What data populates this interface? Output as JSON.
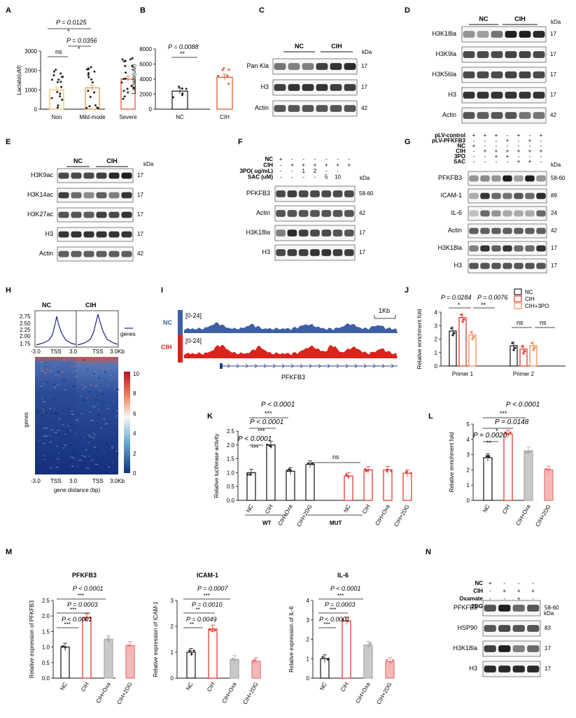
{
  "panel_letters": [
    "A",
    "B",
    "C",
    "D",
    "E",
    "F",
    "G",
    "H",
    "I",
    "J",
    "K",
    "L",
    "M",
    "N"
  ],
  "kda": "kDa",
  "blot_C": {
    "groups": [
      "NC",
      "CIH"
    ],
    "rows": [
      {
        "label": "Pan Kla",
        "size": "17"
      },
      {
        "label": "H3",
        "size": "17"
      },
      {
        "label": "Actin",
        "size": "42"
      }
    ]
  },
  "blot_D": {
    "groups": [
      "NC",
      "CIH"
    ],
    "rows": [
      {
        "label": "H3K18la",
        "size": "17"
      },
      {
        "label": "H3K9la",
        "size": "17"
      },
      {
        "label": "H3K56la",
        "size": "17"
      },
      {
        "label": "H3",
        "size": "17"
      },
      {
        "label": "Actin",
        "size": "42"
      }
    ]
  },
  "blot_E": {
    "groups": [
      "NC",
      "CIH"
    ],
    "rows": [
      {
        "label": "H3K9ac",
        "size": "17"
      },
      {
        "label": "H3K14ac",
        "size": "17"
      },
      {
        "label": "H3K27ac",
        "size": "17"
      },
      {
        "label": "H3",
        "size": "17"
      },
      {
        "label": "Actin",
        "size": "42"
      }
    ]
  },
  "blot_F": {
    "conditions": [
      {
        "label": "NC",
        "marks": [
          "+",
          "-",
          "-",
          "-",
          "-",
          "-",
          "-"
        ]
      },
      {
        "label": "CIH",
        "marks": [
          "-",
          "+",
          "+",
          "+",
          "+",
          "+",
          "+"
        ]
      },
      {
        "label": "3PO( ug/mL)",
        "marks": [
          "-",
          "-",
          "1",
          "2",
          "-",
          "-",
          ""
        ]
      },
      {
        "label": "SAC (uM)",
        "marks": [
          "-",
          "-",
          "-",
          "-",
          "5",
          "10",
          ""
        ]
      }
    ],
    "rows": [
      {
        "label": "PFKFB3",
        "size": "58-60"
      },
      {
        "label": "Actin",
        "size": "42"
      },
      {
        "label": "H3K18la",
        "size": "17"
      },
      {
        "label": "H3",
        "size": "17"
      }
    ]
  },
  "blot_G": {
    "conditions": [
      {
        "label": "pLV-control",
        "marks": [
          "+",
          "+",
          "+",
          "-",
          "+",
          "-",
          "+"
        ]
      },
      {
        "label": "pLV-PFKFB3",
        "marks": [
          "-",
          "-",
          "-",
          "+",
          "-",
          "+",
          "-"
        ]
      },
      {
        "label": "NC",
        "marks": [
          "+",
          "-",
          "-",
          "-",
          "-",
          "-",
          "-"
        ]
      },
      {
        "label": "CIH",
        "marks": [
          "-",
          "+",
          "+",
          "+",
          "+",
          "+",
          "+"
        ]
      },
      {
        "label": "3PO",
        "marks": [
          "-",
          "-",
          "+",
          "+",
          "-",
          "-",
          "-"
        ]
      },
      {
        "label": "SAC",
        "marks": [
          "-",
          "-",
          "-",
          "-",
          "+",
          "+",
          "-"
        ]
      }
    ],
    "rows": [
      {
        "label": "PFKFB3",
        "size": "58-60"
      },
      {
        "label": "ICAM-1",
        "size": "89"
      },
      {
        "label": "IL-6",
        "size": "24"
      },
      {
        "label": "Actin",
        "size": "42"
      },
      {
        "label": "H3K18la",
        "size": "17"
      },
      {
        "label": "H3",
        "size": "17"
      }
    ]
  },
  "blot_N": {
    "conditions": [
      {
        "label": "NC",
        "marks": [
          "+",
          "-",
          "-",
          "-"
        ]
      },
      {
        "label": "CIH",
        "marks": [
          "-",
          "+",
          "+",
          "+"
        ]
      },
      {
        "label": "Oxamate",
        "marks": [
          "-",
          "-",
          "+",
          "-"
        ]
      },
      {
        "label": "2DG",
        "marks": [
          "-",
          "-",
          "-",
          "+"
        ]
      }
    ],
    "rows": [
      {
        "label": "PFKFB3",
        "size": "58-60"
      },
      {
        "label": "HSP90",
        "size": "83"
      },
      {
        "label": "H3K18la",
        "size": "17"
      },
      {
        "label": "H3",
        "size": "17"
      }
    ]
  },
  "heatmap_H": {
    "titles": [
      "NC",
      "CIH"
    ],
    "profile_yticks": [
      "2.75",
      "2.50",
      "2.25",
      "2.00",
      "1.75"
    ],
    "legend": "genes",
    "xticks": [
      "-3.0",
      "TSS",
      "3.0",
      "3.0Kb"
    ],
    "colorbar_ticks": [
      "10",
      "8",
      "6",
      "4",
      "2",
      "0"
    ],
    "ylabel": "genes",
    "xlabel": "gene distance (bp)"
  },
  "track_I": {
    "tracks": [
      {
        "name": "NC",
        "range": "[0-24]"
      },
      {
        "name": "CIH",
        "range": "[0-24]"
      }
    ],
    "scale": "1Kb",
    "gene": "PFKFB3",
    "colors": {
      "NC": "#3d5fa6",
      "CIH": "#d9231c"
    }
  },
  "stats": {
    "A": [
      "P = 0.0125",
      "*",
      "P = 0.0356",
      "ns",
      "*"
    ],
    "B": [
      "P = 0.0088",
      "**"
    ],
    "J": [
      "P = 0.0284",
      "P = 0.0076",
      "*",
      "**",
      "ns",
      "ns"
    ],
    "K": [
      "P < 0.0001",
      "***",
      "P < 0.0001",
      "***",
      "P < 0.0001",
      "***",
      "ns"
    ],
    "L": [
      "P < 0.0001",
      "***",
      "P = 0.0148",
      "*",
      "P = 0.0020",
      "**"
    ],
    "M1": [
      "P < 0.0001",
      "***",
      "P = 0.0003",
      "***",
      "P < 0.0001",
      "***"
    ],
    "M2": [
      "P = 0.0007",
      "***",
      "P = 0.0010",
      "**",
      "P = 0.0049",
      "**"
    ],
    "M3": [
      "P < 0.0001",
      "***",
      "P = 0.0003",
      "***",
      "P < 0.0001",
      "***"
    ]
  },
  "group_labels": {
    "K": [
      "WT",
      "MUT"
    ]
  },
  "chart_data": [
    {
      "panel": "A",
      "type": "bar",
      "categories": [
        "Non",
        "Mild-mode",
        "Severe"
      ],
      "values": [
        1000,
        1100,
        1550
      ],
      "ylabel": "Lactate(uM)",
      "ylim": [
        0,
        3000
      ],
      "yticks": [
        "0",
        "1000",
        "2000",
        "3000"
      ],
      "colors": [
        "#f3c46b",
        "#e8924a",
        "#e55a3a"
      ]
    },
    {
      "panel": "B",
      "type": "bar",
      "categories": [
        "NC",
        "CIH"
      ],
      "values": [
        2400,
        4250
      ],
      "ylabel": "Lactate(uM)",
      "ylim": [
        0,
        8000
      ],
      "yticks": [
        "0",
        "2000",
        "4000",
        "6000",
        "8000"
      ],
      "colors": [
        "#222222",
        "#e2572f"
      ]
    },
    {
      "panel": "J",
      "type": "bar",
      "categories": [
        "Primer 1",
        "Primer 2"
      ],
      "series": [
        {
          "name": "NC",
          "values": [
            2.6,
            1.5
          ]
        },
        {
          "name": "CIH",
          "values": [
            3.6,
            1.25
          ]
        },
        {
          "name": "CIH+3PO",
          "values": [
            2.3,
            1.5
          ]
        }
      ],
      "ylabel": "Relative enrichment fold",
      "ylim": [
        0,
        4
      ],
      "yticks": [
        "0",
        "1",
        "2",
        "3",
        "4"
      ],
      "colors": [
        "#222222",
        "#e23c2f",
        "#f28b54"
      ]
    },
    {
      "panel": "K",
      "type": "bar",
      "categories": [
        "NC",
        "CIH",
        "CIH+Oxa",
        "CIH+2DG",
        "NC",
        "CIH",
        "CIH+Oxa",
        "CIH+2DG"
      ],
      "values": [
        1.0,
        2.0,
        1.05,
        1.3,
        0.88,
        1.1,
        1.1,
        0.98
      ],
      "ylabel": "Relative luciferase activity",
      "ylim": [
        0,
        2.5
      ],
      "yticks": [
        "0.0",
        "0.5",
        "1.0",
        "1.5",
        "2.0",
        "2.5"
      ],
      "colors": [
        "#222222",
        "#222222",
        "#222222",
        "#222222",
        "#e23c2f",
        "#e23c2f",
        "#e23c2f",
        "#e23c2f"
      ]
    },
    {
      "panel": "L",
      "type": "bar",
      "categories": [
        "NC",
        "CIH",
        "CIH+Oxa",
        "CIH+2DG"
      ],
      "values": [
        2.8,
        4.35,
        3.25,
        2.0
      ],
      "ylabel": "Relative enrichment fold",
      "ylim": [
        0,
        5
      ],
      "yticks": [
        "0",
        "1",
        "2",
        "3",
        "4",
        "5"
      ],
      "colors": [
        "#222222",
        "#e23c2f",
        "#aaaaaa",
        "#ec7a7a"
      ]
    },
    {
      "panel": "M1",
      "title": "PFKFB3",
      "type": "bar",
      "categories": [
        "NC",
        "CIH",
        "CIH+Oxa",
        "CIH+2DG"
      ],
      "values": [
        1.0,
        1.95,
        1.25,
        1.05
      ],
      "ylabel": "Relative expression of PFKFB3",
      "ylim": [
        0,
        2.5
      ],
      "yticks": [
        "0.0",
        "0.5",
        "1.0",
        "1.5",
        "2.0",
        "2.5"
      ],
      "colors": [
        "#222222",
        "#e23c2f",
        "#aaaaaa",
        "#ec7a7a"
      ]
    },
    {
      "panel": "M2",
      "title": "ICAM-1",
      "type": "bar",
      "categories": [
        "NC",
        "CIH",
        "CIH+Oxa",
        "CIH+2DG"
      ],
      "values": [
        1.0,
        1.9,
        0.72,
        0.65
      ],
      "ylabel": "Relative expression of ICAM-1",
      "ylim": [
        0,
        3
      ],
      "yticks": [
        "0",
        "1",
        "2",
        "3"
      ],
      "colors": [
        "#222222",
        "#e23c2f",
        "#aaaaaa",
        "#ec7a7a"
      ]
    },
    {
      "panel": "M3",
      "title": "IL-6",
      "type": "bar",
      "categories": [
        "NC",
        "CIH",
        "CIH+Oxa",
        "CIH+2DG"
      ],
      "values": [
        1.0,
        2.95,
        1.7,
        0.85
      ],
      "ylabel": "Relative expression of IL-6",
      "ylim": [
        0,
        4
      ],
      "yticks": [
        "0",
        "1",
        "2",
        "3",
        "4"
      ],
      "colors": [
        "#222222",
        "#e23c2f",
        "#aaaaaa",
        "#ec7a7a"
      ]
    }
  ]
}
